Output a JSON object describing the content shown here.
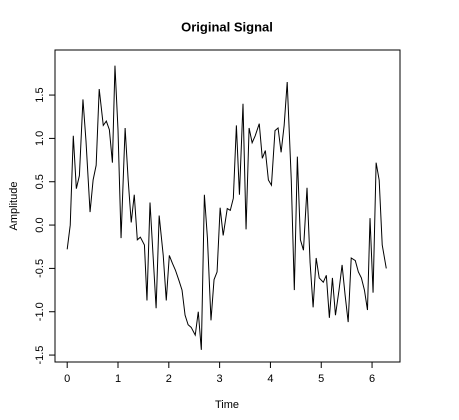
{
  "chart_data": {
    "type": "line",
    "title": "Original Signal",
    "xlabel": "Time",
    "ylabel": "Amplitude",
    "x": [
      0,
      0.06,
      0.12,
      0.18,
      0.24,
      0.31,
      0.37,
      0.45,
      0.51,
      0.57,
      0.63,
      0.71,
      0.77,
      0.83,
      0.89,
      0.94,
      1.0,
      1.06,
      1.14,
      1.2,
      1.26,
      1.32,
      1.38,
      1.44,
      1.52,
      1.57,
      1.63,
      1.69,
      1.75,
      1.81,
      1.89,
      1.95,
      2.01,
      2.07,
      2.13,
      2.2,
      2.26,
      2.32,
      2.38,
      2.44,
      2.52,
      2.58,
      2.64,
      2.7,
      2.76,
      2.83,
      2.89,
      2.95,
      3.01,
      3.07,
      3.15,
      3.21,
      3.27,
      3.33,
      3.39,
      3.46,
      3.52,
      3.58,
      3.64,
      3.7,
      3.78,
      3.84,
      3.9,
      3.96,
      4.02,
      4.09,
      4.15,
      4.21,
      4.27,
      4.33,
      4.41,
      4.47,
      4.53,
      4.59,
      4.65,
      4.72,
      4.78,
      4.84,
      4.9,
      4.96,
      5.04,
      5.1,
      5.16,
      5.22,
      5.28,
      5.35,
      5.41,
      5.47,
      5.53,
      5.59,
      5.67,
      5.73,
      5.79,
      5.85,
      5.91,
      5.96,
      6.02,
      6.08,
      6.14,
      6.2,
      6.28
    ],
    "values": [
      -0.28,
      0.0,
      1.03,
      0.42,
      0.57,
      1.45,
      0.97,
      0.15,
      0.52,
      0.69,
      1.57,
      1.15,
      1.2,
      1.1,
      0.72,
      1.84,
      1.1,
      -0.15,
      1.12,
      0.52,
      0.03,
      0.35,
      -0.17,
      -0.14,
      -0.23,
      -0.87,
      0.26,
      -0.35,
      -0.96,
      0.11,
      -0.35,
      -0.87,
      -0.35,
      -0.44,
      -0.52,
      -0.64,
      -0.75,
      -1.04,
      -1.15,
      -1.18,
      -1.27,
      -1.0,
      -1.44,
      0.35,
      -0.15,
      -1.1,
      -0.63,
      -0.54,
      0.2,
      -0.12,
      0.19,
      0.17,
      0.31,
      1.15,
      0.35,
      1.4,
      -0.05,
      1.12,
      0.95,
      1.03,
      1.17,
      0.77,
      0.86,
      0.52,
      0.46,
      1.09,
      1.12,
      0.84,
      1.15,
      1.65,
      0.52,
      -0.75,
      0.79,
      -0.17,
      -0.29,
      0.43,
      -0.43,
      -0.95,
      -0.38,
      -0.61,
      -0.66,
      -0.58,
      -1.07,
      -0.61,
      -1.04,
      -0.75,
      -0.46,
      -0.81,
      -1.12,
      -0.38,
      -0.41,
      -0.54,
      -0.61,
      -0.75,
      -0.98,
      0.08,
      -0.78,
      0.72,
      0.52,
      -0.23,
      -0.5
    ],
    "color": "#000000",
    "xlim": [
      -0.24,
      6.55
    ],
    "ylim": [
      -1.58,
      2.02
    ],
    "xticks": [
      0,
      1,
      2,
      3,
      4,
      5,
      6
    ],
    "yticks": [
      {
        "value": -1.5,
        "label": "-1.5"
      },
      {
        "value": -1,
        "label": "-1.0"
      },
      {
        "value": -0.5,
        "label": "-0.5"
      },
      {
        "value": 0,
        "label": "0.0"
      },
      {
        "value": 0.5,
        "label": "0.5"
      },
      {
        "value": 1,
        "label": "1.0"
      },
      {
        "value": 1.5,
        "label": "1.5"
      }
    ]
  }
}
